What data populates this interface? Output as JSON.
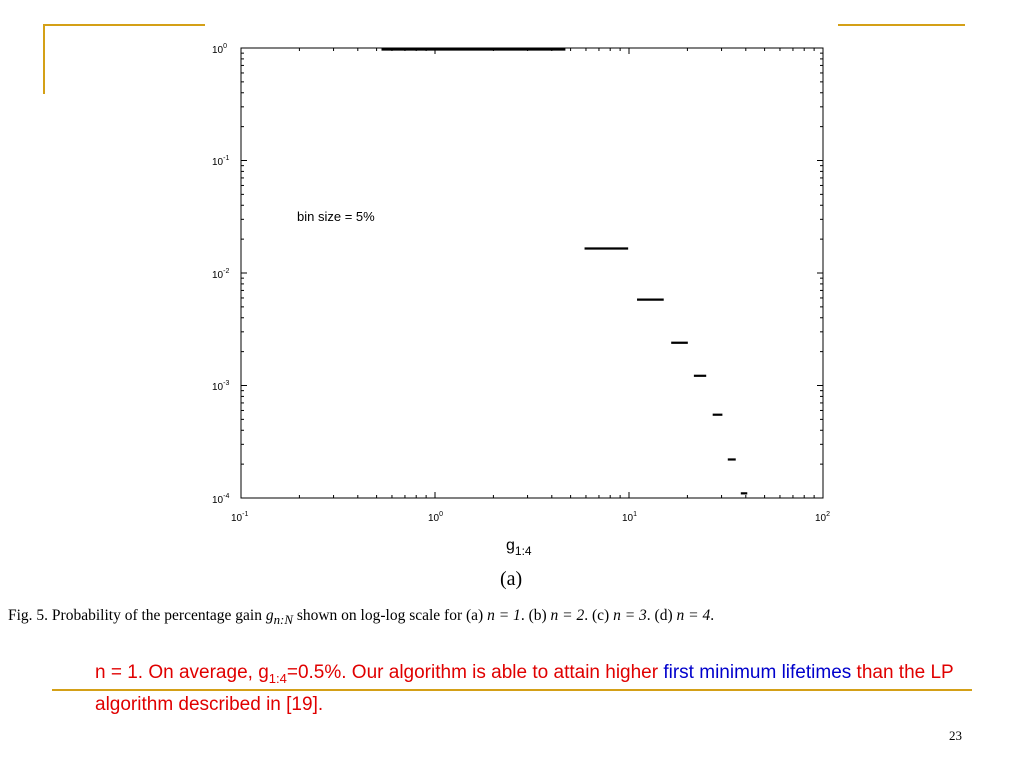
{
  "accent_color": "#d4a017",
  "chart_data": {
    "type": "line",
    "xscale": "log",
    "yscale": "log",
    "xlim": [
      0.1,
      100
    ],
    "ylim": [
      0.0001,
      1
    ],
    "grid": false,
    "xlabel_base": "g",
    "xlabel_sub": "1:4",
    "panel_label": "(a)",
    "annotation": "bin size = 5%",
    "x_ticks": [
      {
        "base": "10",
        "exp": "-1"
      },
      {
        "base": "10",
        "exp": "0"
      },
      {
        "base": "10",
        "exp": "1"
      },
      {
        "base": "10",
        "exp": "2"
      }
    ],
    "y_ticks": [
      {
        "base": "10",
        "exp": "0"
      },
      {
        "base": "10",
        "exp": "-1"
      },
      {
        "base": "10",
        "exp": "-2"
      },
      {
        "base": "10",
        "exp": "-3"
      },
      {
        "base": "10",
        "exp": "-4"
      }
    ],
    "segments": [
      {
        "x_start": 0.53,
        "x_end": 4.7,
        "y": 0.97
      },
      {
        "x_start": 5.9,
        "x_end": 9.9,
        "y": 0.0165
      },
      {
        "x_start": 11.0,
        "x_end": 15.1,
        "y": 0.0058
      },
      {
        "x_start": 16.5,
        "x_end": 20.1,
        "y": 0.0024
      },
      {
        "x_start": 21.6,
        "x_end": 25.0,
        "y": 0.00122
      },
      {
        "x_start": 27.0,
        "x_end": 30.3,
        "y": 0.00055
      },
      {
        "x_start": 32.3,
        "x_end": 35.5,
        "y": 0.00022
      },
      {
        "x_start": 37.7,
        "x_end": 40.7,
        "y": 0.00011
      }
    ]
  },
  "caption": {
    "prefix": "Fig. 5.   Probability of the percentage gain ",
    "g_symbol": "g",
    "g_sub": "n:N",
    "middle": " shown on log-log scale for (a) ",
    "a_eq": "n = 1",
    "b_label": ". (b) ",
    "b_eq": "n = 2",
    "c_label": ". (c) ",
    "c_eq": "n = 3",
    "d_label": ". (d) ",
    "d_eq": "n = 4",
    "end": "."
  },
  "body_text": {
    "part1": "n = 1. On average, g",
    "sub": "1:4",
    "part2": "=0.5%. Our algorithm is able to attain higher ",
    "highlight": "first minimum lifetimes",
    "part3": " than the LP algorithm described in [19]."
  },
  "page_number": "23"
}
